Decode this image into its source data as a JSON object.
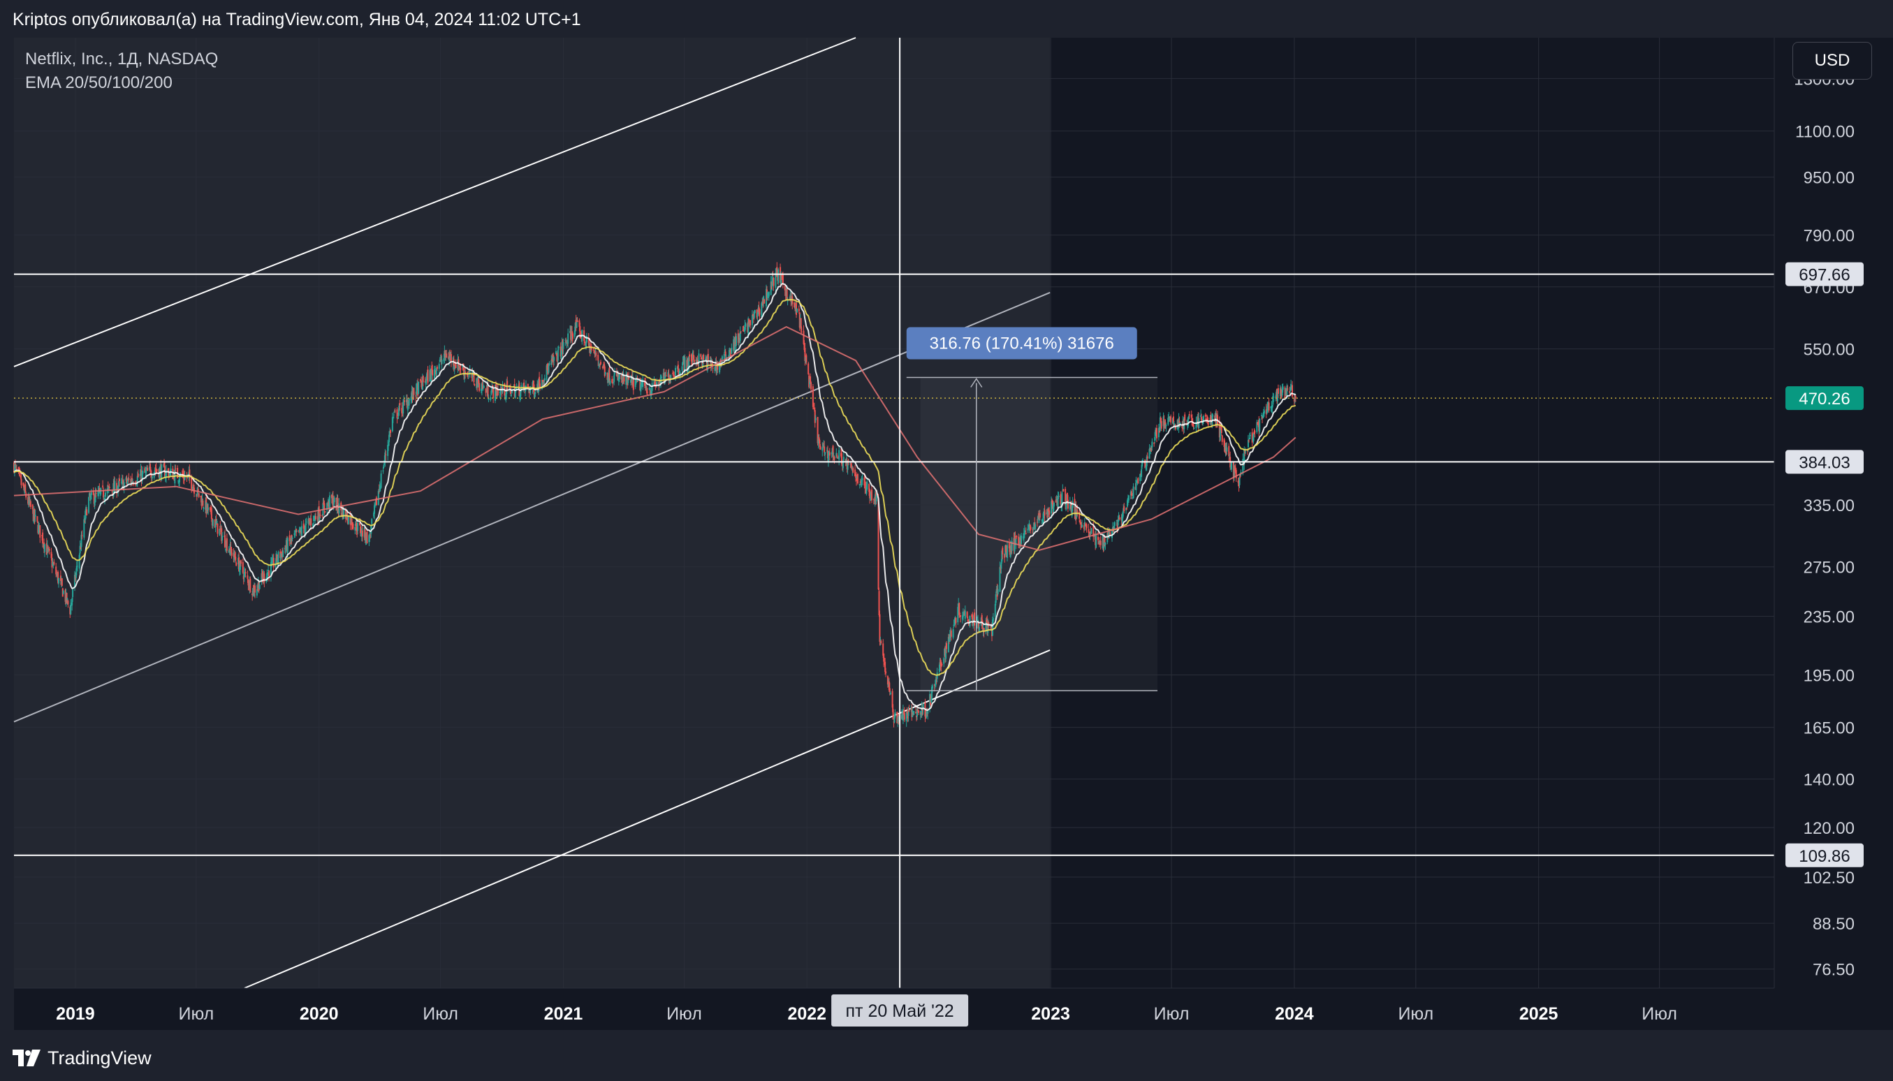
{
  "header": {
    "text": "Kriptos опубликовал(а) на TradingView.com, Янв 04, 2024 11:02 UTC+1"
  },
  "legend": {
    "symbol": "Netflix, Inc., 1Д, NASDAQ",
    "indicator": "EMA 20/50/100/200"
  },
  "currency_button": "USD",
  "brand": {
    "name": "TradingView"
  },
  "colors": {
    "background": "#131722",
    "panel": "#1e222d",
    "up": "#26a69a",
    "down": "#ef5350",
    "ema20": "#ffffff",
    "ema50": "#f0e05a",
    "ema200": "#e57373",
    "last_price": "#089981"
  },
  "chart_data": {
    "type": "candlestick",
    "y_scale": "log",
    "ylim": [
      72,
      1480
    ],
    "xlim": [
      "2018-10-01",
      "2025-12-20"
    ],
    "y_ticks": [
      "1300.00",
      "1100.00",
      "950.00",
      "790.00",
      "670.00",
      "550.00",
      "335.00",
      "275.00",
      "235.00",
      "195.00",
      "165.00",
      "140.00",
      "120.00",
      "102.50",
      "88.50",
      "76.50"
    ],
    "x_ticks": [
      {
        "label": "2019",
        "date": "2019-01-01",
        "year": true
      },
      {
        "label": "Июл",
        "date": "2019-07-01",
        "year": false
      },
      {
        "label": "2020",
        "date": "2020-01-01",
        "year": true
      },
      {
        "label": "Июл",
        "date": "2020-07-01",
        "year": false
      },
      {
        "label": "2021",
        "date": "2021-01-01",
        "year": true
      },
      {
        "label": "Июл",
        "date": "2021-07-01",
        "year": false
      },
      {
        "label": "2022",
        "date": "2022-01-01",
        "year": true
      },
      {
        "label": "2023",
        "date": "2023-01-01",
        "year": true
      },
      {
        "label": "Июл",
        "date": "2023-07-01",
        "year": false
      },
      {
        "label": "2024",
        "date": "2024-01-01",
        "year": true
      },
      {
        "label": "Июл",
        "date": "2024-07-01",
        "year": false
      },
      {
        "label": "2025",
        "date": "2025-01-01",
        "year": true
      },
      {
        "label": "Июл",
        "date": "2025-07-01",
        "year": false
      }
    ],
    "price_path": [
      [
        "2018-10-01",
        380
      ],
      [
        "2018-12-24",
        240
      ],
      [
        "2019-01-20",
        340
      ],
      [
        "2019-04-30",
        375
      ],
      [
        "2019-06-20",
        365
      ],
      [
        "2019-09-25",
        255
      ],
      [
        "2019-11-15",
        295
      ],
      [
        "2020-01-20",
        340
      ],
      [
        "2020-03-16",
        300
      ],
      [
        "2020-04-20",
        440
      ],
      [
        "2020-07-10",
        540
      ],
      [
        "2020-09-10",
        480
      ],
      [
        "2020-11-20",
        485
      ],
      [
        "2021-01-20",
        590
      ],
      [
        "2021-03-10",
        505
      ],
      [
        "2021-05-12",
        485
      ],
      [
        "2021-07-15",
        535
      ],
      [
        "2021-08-20",
        520
      ],
      [
        "2021-10-20",
        620
      ],
      [
        "2021-11-17",
        700
      ],
      [
        "2021-12-20",
        610
      ],
      [
        "2022-01-20",
        400
      ],
      [
        "2022-02-20",
        390
      ],
      [
        "2022-04-15",
        340
      ],
      [
        "2022-04-20",
        220
      ],
      [
        "2022-05-11",
        170
      ],
      [
        "2022-06-30",
        175
      ],
      [
        "2022-08-15",
        240
      ],
      [
        "2022-10-05",
        225
      ],
      [
        "2022-10-20",
        285
      ],
      [
        "2023-01-20",
        345
      ],
      [
        "2023-03-15",
        295
      ],
      [
        "2023-04-20",
        325
      ],
      [
        "2023-06-15",
        435
      ],
      [
        "2023-07-20",
        435
      ],
      [
        "2023-09-05",
        440
      ],
      [
        "2023-10-10",
        355
      ],
      [
        "2023-10-20",
        400
      ],
      [
        "2023-12-01",
        470
      ],
      [
        "2023-12-28",
        485
      ],
      [
        "2024-01-03",
        468
      ]
    ],
    "ema200_path": [
      [
        "2018-10-01",
        345
      ],
      [
        "2019-06-01",
        355
      ],
      [
        "2019-12-01",
        325
      ],
      [
        "2020-06-01",
        350
      ],
      [
        "2020-12-01",
        440
      ],
      [
        "2021-06-01",
        480
      ],
      [
        "2021-12-01",
        590
      ],
      [
        "2022-03-15",
        530
      ],
      [
        "2022-06-15",
        390
      ],
      [
        "2022-09-15",
        305
      ],
      [
        "2022-12-15",
        290
      ],
      [
        "2023-06-01",
        320
      ],
      [
        "2023-12-01",
        390
      ],
      [
        "2024-01-03",
        415
      ]
    ],
    "annotations": {
      "horizontal_levels": [
        697.66,
        384.03,
        109.86
      ],
      "level_labels": [
        "697.66",
        "384.03",
        "109.86"
      ],
      "last_price": 470.26,
      "last_price_label": "470.26",
      "crosshair_date": "2022-05-20",
      "crosshair_label": "пт 20 Май '22",
      "measure": {
        "from_date": "2022-06-20",
        "from_price": 185.5,
        "to_price": 502.3,
        "label": "316.76 (170.41%) 31676",
        "end_date": "2023-06-10"
      },
      "channel": {
        "lower": [
          [
            "2018-10-01",
            24
          ],
          [
            "2022-12-31",
            211
          ]
        ],
        "middle": [
          [
            "2018-10-01",
            168
          ],
          [
            "2022-12-31",
            658
          ]
        ],
        "upper_to": [
          "2022-03-15",
          1480
        ]
      }
    }
  }
}
